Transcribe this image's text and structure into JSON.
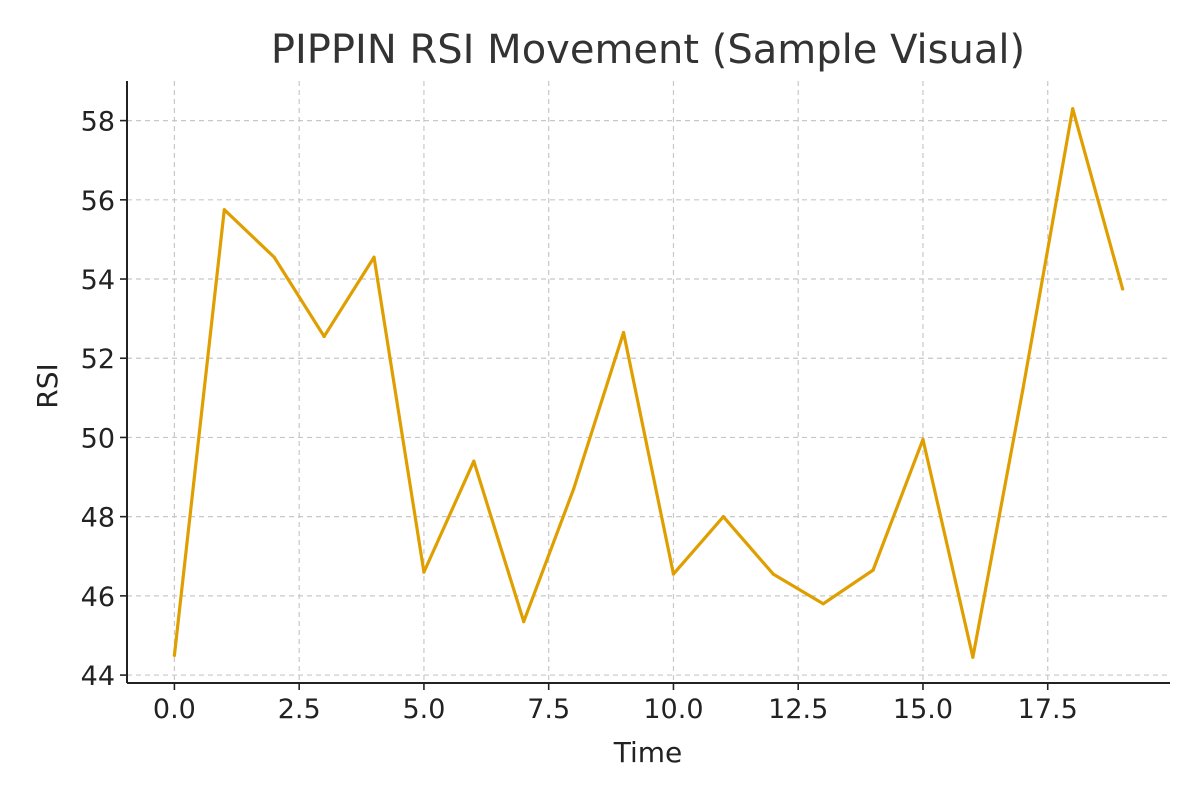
{
  "chart_data": {
    "type": "line",
    "title": "PIPPIN RSI Movement (Sample Visual)",
    "xlabel": "Time",
    "ylabel": "RSI",
    "x": [
      0,
      1,
      2,
      3,
      4,
      5,
      6,
      7,
      8,
      9,
      10,
      11,
      12,
      13,
      14,
      15,
      16,
      17,
      18,
      19
    ],
    "series": [
      {
        "values": [
          44.5,
          55.75,
          54.55,
          52.55,
          54.55,
          46.6,
          49.4,
          45.35,
          48.7,
          52.65,
          46.55,
          48.0,
          46.55,
          45.8,
          46.65,
          49.95,
          44.45,
          51.2,
          58.3,
          53.75
        ],
        "color": "#e09f00"
      }
    ],
    "xlim": [
      -0.95,
      19.95
    ],
    "ylim": [
      43.8,
      59.0
    ],
    "xticks": [
      0.0,
      2.5,
      5.0,
      7.5,
      10.0,
      12.5,
      15.0,
      17.5
    ],
    "xtick_labels": [
      "0.0",
      "2.5",
      "5.0",
      "7.5",
      "10.0",
      "12.5",
      "15.0",
      "17.5"
    ],
    "yticks": [
      44,
      46,
      48,
      50,
      52,
      54,
      56,
      58
    ],
    "ytick_labels": [
      "44",
      "46",
      "48",
      "50",
      "52",
      "54",
      "56",
      "58"
    ],
    "grid": true,
    "legend": "none"
  }
}
